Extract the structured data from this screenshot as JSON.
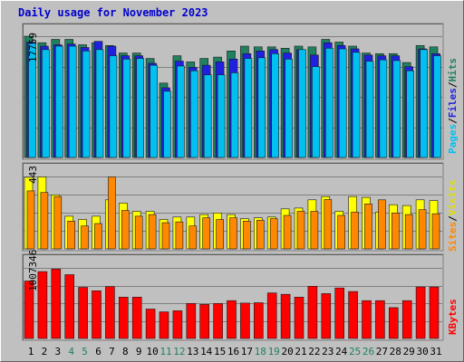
{
  "chart_data": [
    {
      "type": "bar",
      "title": "Daily usage for November 2023",
      "ymax_label": "17759",
      "categories": [
        "1",
        "2",
        "3",
        "4",
        "5",
        "6",
        "7",
        "8",
        "9",
        "10",
        "11",
        "12",
        "13",
        "14",
        "15",
        "16",
        "17",
        "18",
        "19",
        "20",
        "21",
        "22",
        "23",
        "24",
        "25",
        "26",
        "27",
        "28",
        "29",
        "30",
        "31"
      ],
      "weekend_days": [
        "4",
        "5",
        "11",
        "12",
        "18",
        "19",
        "25",
        "26"
      ],
      "ylim": [
        0,
        17759
      ],
      "legend_items": [
        {
          "label": "Pages",
          "color": "#00c0f0"
        },
        {
          "label": "Files",
          "color": "#2020e0"
        },
        {
          "label": "Hits",
          "color": "#208060"
        }
      ],
      "legend_separator": "/",
      "series": [
        {
          "name": "Hits",
          "color": "#208060",
          "values": [
            17759,
            16800,
            17300,
            17300,
            16500,
            16800,
            16400,
            15300,
            15300,
            14500,
            10900,
            14900,
            14000,
            14500,
            14700,
            15600,
            16300,
            16200,
            16200,
            16000,
            16300,
            16200,
            17300,
            16900,
            16300,
            15300,
            15200,
            15200,
            13900,
            16400,
            16200
          ]
        },
        {
          "name": "Files",
          "color": "#2020e0",
          "values": [
            16900,
            16300,
            16500,
            16600,
            16100,
            17000,
            16300,
            14900,
            14900,
            13800,
            10200,
            14100,
            13200,
            13500,
            14000,
            14400,
            15200,
            15600,
            15800,
            15300,
            15800,
            15000,
            16800,
            16400,
            15900,
            15000,
            14900,
            14900,
            13300,
            15900,
            15200
          ]
        },
        {
          "name": "Pages",
          "color": "#00c0f0",
          "values": [
            16700,
            15800,
            16300,
            16300,
            15600,
            15800,
            14900,
            14400,
            14500,
            13500,
            9700,
            13400,
            12700,
            12100,
            12100,
            12400,
            14500,
            14600,
            15200,
            14400,
            15800,
            13300,
            16000,
            15900,
            15400,
            14100,
            14300,
            14200,
            12700,
            15800,
            14900
          ]
        }
      ]
    },
    {
      "type": "bar",
      "ymax_label": "443",
      "categories": [
        "1",
        "2",
        "3",
        "4",
        "5",
        "6",
        "7",
        "8",
        "9",
        "10",
        "11",
        "12",
        "13",
        "14",
        "15",
        "16",
        "17",
        "18",
        "19",
        "20",
        "21",
        "22",
        "23",
        "24",
        "25",
        "26",
        "27",
        "28",
        "29",
        "30",
        "31"
      ],
      "ylim": [
        0,
        443
      ],
      "legend_items": [
        {
          "label": "Sites",
          "color": "#ff8800"
        },
        {
          "label": "Visits",
          "color": "#ffff00"
        }
      ],
      "legend_separator": "/",
      "series": [
        {
          "name": "Visits",
          "color": "#ffff00",
          "values": [
            438,
            440,
            330,
            200,
            180,
            200,
            300,
            280,
            230,
            230,
            180,
            195,
            195,
            210,
            220,
            210,
            185,
            190,
            195,
            245,
            250,
            300,
            320,
            230,
            320,
            315,
            225,
            270,
            265,
            300,
            295
          ]
        },
        {
          "name": "Sites",
          "color": "#ff8800",
          "values": [
            355,
            345,
            320,
            170,
            140,
            155,
            440,
            235,
            200,
            210,
            160,
            165,
            140,
            190,
            180,
            190,
            170,
            175,
            185,
            205,
            230,
            230,
            302,
            205,
            225,
            275,
            300,
            220,
            210,
            240,
            215
          ]
        }
      ]
    },
    {
      "type": "bar",
      "ymax_label": "1007346",
      "categories": [
        "1",
        "2",
        "3",
        "4",
        "5",
        "6",
        "7",
        "8",
        "9",
        "10",
        "11",
        "12",
        "13",
        "14",
        "15",
        "16",
        "17",
        "18",
        "19",
        "20",
        "21",
        "22",
        "23",
        "24",
        "25",
        "26",
        "27",
        "28",
        "29",
        "30",
        "31"
      ],
      "ylim": [
        0,
        1007346
      ],
      "legend_items": [
        {
          "label": "KBytes",
          "color": "#ff0000"
        }
      ],
      "series": [
        {
          "name": "KBytes",
          "color": "#ff0000",
          "values": [
            820000,
            955000,
            990000,
            910000,
            730000,
            680000,
            740000,
            590000,
            590000,
            420000,
            380000,
            395000,
            500000,
            485000,
            500000,
            540000,
            505000,
            510000,
            650000,
            630000,
            590000,
            745000,
            640000,
            720000,
            670000,
            540000,
            540000,
            440000,
            540000,
            735000,
            735000
          ]
        }
      ]
    }
  ]
}
